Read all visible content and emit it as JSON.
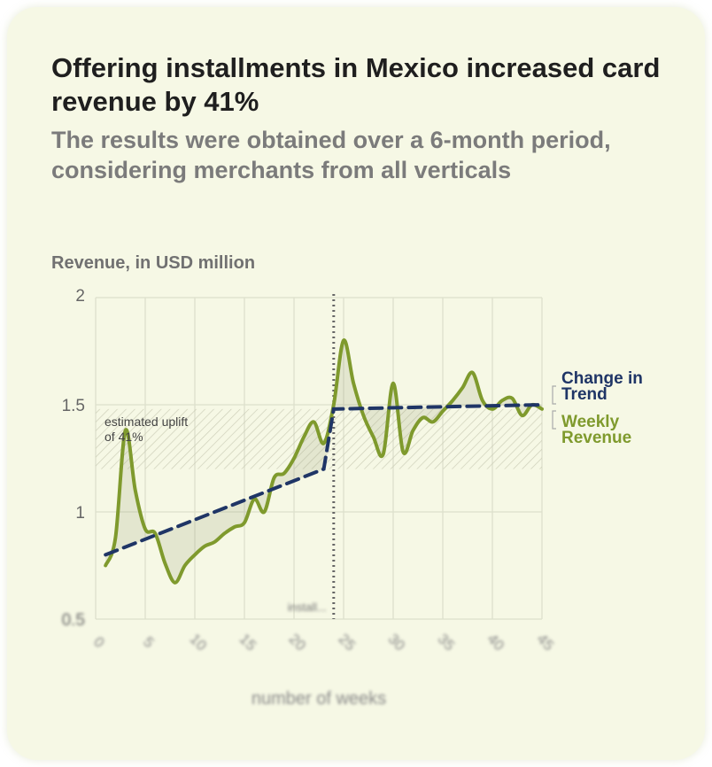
{
  "header": {
    "title": "Offering installments in Mexico increased card revenue by 41%",
    "subtitle": "The results were obtained over a 6-month period, considering merchants from all verticals"
  },
  "chart_data": {
    "type": "line",
    "title": "Offering installments in Mexico increased card revenue by 41%",
    "ylabel": "Revenue, in USD million",
    "xlabel": "number of weeks",
    "xlim": [
      0,
      45
    ],
    "ylim": [
      0.5,
      2
    ],
    "yticks": [
      2,
      1.5,
      1,
      0.5
    ],
    "xticks": [
      0,
      5,
      10,
      15,
      20,
      25,
      30,
      35,
      40,
      45
    ],
    "series": [
      {
        "name": "Weekly Revenue",
        "color": "#7f9a2d",
        "x": [
          1,
          2,
          3,
          4,
          5,
          6,
          7,
          8,
          9,
          10,
          11,
          12,
          13,
          14,
          15,
          16,
          17,
          18,
          19,
          20,
          21,
          22,
          23,
          24,
          25,
          26,
          27,
          28,
          29,
          30,
          31,
          32,
          33,
          34,
          35,
          36,
          37,
          38,
          39,
          40,
          41,
          42,
          43,
          44,
          45
        ],
        "values": [
          0.75,
          0.88,
          1.38,
          1.1,
          0.92,
          0.9,
          0.76,
          0.67,
          0.75,
          0.8,
          0.84,
          0.86,
          0.9,
          0.93,
          0.95,
          1.06,
          1.0,
          1.16,
          1.18,
          1.25,
          1.35,
          1.42,
          1.32,
          1.5,
          1.8,
          1.6,
          1.45,
          1.35,
          1.27,
          1.6,
          1.28,
          1.38,
          1.44,
          1.42,
          1.47,
          1.52,
          1.58,
          1.65,
          1.52,
          1.48,
          1.52,
          1.53,
          1.45,
          1.5,
          1.48
        ]
      },
      {
        "name": "Change in Trend",
        "color": "#1f3566",
        "x": [
          1,
          23,
          24,
          45
        ],
        "values": [
          0.8,
          1.2,
          1.48,
          1.5
        ]
      }
    ],
    "band": {
      "from": 1.2,
      "to": 1.48
    },
    "annotations": {
      "uplift": "estimated uplift of 41%",
      "event_x": 24,
      "event_label": "install..."
    },
    "legend": [
      "Change in Trend",
      "Weekly Revenue"
    ]
  }
}
